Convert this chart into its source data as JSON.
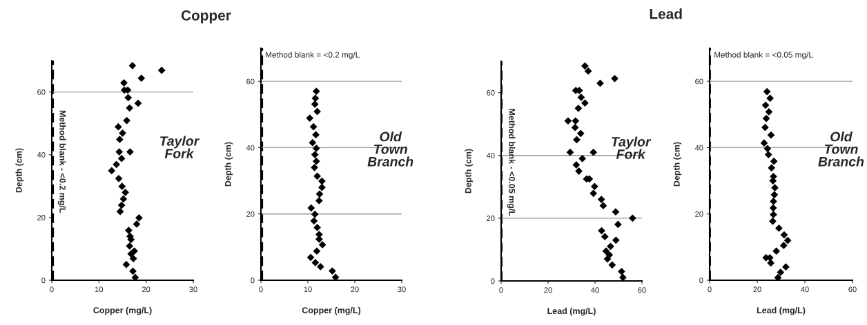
{
  "chart_data": [
    {
      "type": "scatter",
      "title": "Copper",
      "xlabel": "Copper (mg/L)",
      "ylabel": "Depth (cm)",
      "annotations": [
        "Taylor Fork"
      ],
      "marker": "diamond",
      "grid": false,
      "xlim": [
        0,
        30
      ],
      "xticks": [
        0,
        10,
        20,
        30
      ],
      "ylim": [
        0,
        70
      ],
      "yticks": [
        0,
        20,
        40,
        60
      ],
      "ref_lines": [
        {
          "axis": "x",
          "value": 0.2,
          "label": "Method blank - <0.2 mg/L",
          "line_style": "dashed",
          "color": "#000000"
        },
        {
          "axis": "y",
          "value": 60,
          "color": "#999999"
        }
      ],
      "series": [
        {
          "color": "#000000",
          "x": [
            17.1,
            23.3,
            19.0,
            15.3,
            15.4,
            16.1,
            16.2,
            18.3,
            16.5,
            15.9,
            14.1,
            15.0,
            14.4,
            14.3,
            16.6,
            14.8,
            13.7,
            12.7,
            14.2,
            14.9,
            15.6,
            15.2,
            14.8,
            14.5,
            18.5,
            18.0,
            16.3,
            16.6,
            16.8,
            16.5,
            17.5,
            16.8,
            17.3,
            15.8,
            17.2,
            17.7
          ],
          "values": [
            68.4,
            66.9,
            64.4,
            62.9,
            60.6,
            60.6,
            58.2,
            56.4,
            54.9,
            50.9,
            48.9,
            46.9,
            44.9,
            40.9,
            40.9,
            38.8,
            36.9,
            34.9,
            32.4,
            29.9,
            28.0,
            25.9,
            23.9,
            21.9,
            19.9,
            17.9,
            15.9,
            14.0,
            13.0,
            10.9,
            9.3,
            8.4,
            6.9,
            5.0,
            2.9,
            0.9
          ]
        }
      ]
    },
    {
      "type": "scatter",
      "xlabel": "Copper (mg/L)",
      "ylabel": "Depth (cm)",
      "annotations": [
        "Old Town Branch"
      ],
      "marker": "diamond",
      "grid": false,
      "xlim": [
        0,
        30
      ],
      "xticks": [
        0,
        10,
        20,
        30
      ],
      "ylim": [
        0,
        70
      ],
      "yticks": [
        0,
        20,
        40,
        60
      ],
      "ref_lines": [
        {
          "axis": "x",
          "value": 0.2,
          "label": "Method blank = <0.2 mg/L",
          "line_style": "dashed",
          "color": "#000000"
        },
        {
          "axis": "y",
          "value": 20,
          "color": "#999999"
        },
        {
          "axis": "y",
          "value": 40,
          "color": "#999999"
        },
        {
          "axis": "y",
          "value": 60,
          "color": "#999999"
        }
      ],
      "series": [
        {
          "color": "#000000",
          "x": [
            11.8,
            11.6,
            11.5,
            12.0,
            10.4,
            11.2,
            11.7,
            11.0,
            11.8,
            11.5,
            11.8,
            11.4,
            12.0,
            13.0,
            13.0,
            12.5,
            12.4,
            10.7,
            11.5,
            11.3,
            12.0,
            12.4,
            12.4,
            13.1,
            11.9,
            10.6,
            11.6,
            12.7,
            15.2,
            15.9
          ],
          "values": [
            57.0,
            54.9,
            53.1,
            50.9,
            48.9,
            46.3,
            43.9,
            41.5,
            39.8,
            37.9,
            35.9,
            34.0,
            31.4,
            29.9,
            28.0,
            26.0,
            24.0,
            21.8,
            19.9,
            17.9,
            15.9,
            13.8,
            12.4,
            10.7,
            8.8,
            6.9,
            5.3,
            4.1,
            2.8,
            0.9
          ]
        }
      ]
    },
    {
      "type": "scatter",
      "title": "Lead",
      "xlabel": "Lead (mg/L)",
      "ylabel": "Depth (cm)",
      "annotations": [
        "Taylor Fork"
      ],
      "marker": "diamond",
      "grid": false,
      "xlim": [
        0,
        60
      ],
      "xticks": [
        0,
        20,
        40,
        60
      ],
      "ylim": [
        0,
        70
      ],
      "yticks": [
        0,
        20,
        40,
        60
      ],
      "ref_lines": [
        {
          "axis": "x",
          "value": 0.05,
          "label": "Method blank - <0.05 mg/L",
          "line_style": "dashed",
          "color": "#000000"
        },
        {
          "axis": "y",
          "value": 20,
          "color": "#999999"
        },
        {
          "axis": "y",
          "value": 40,
          "color": "#999999"
        }
      ],
      "series": [
        {
          "color": "#000000",
          "x": [
            35.7,
            37.1,
            48.4,
            42.2,
            31.8,
            33.3,
            34.1,
            35.7,
            32.9,
            28.5,
            31.7,
            31.5,
            33.9,
            32.2,
            29.4,
            39.3,
            34.6,
            32.0,
            33.1,
            36.4,
            37.6,
            39.8,
            39.3,
            42.7,
            43.5,
            48.8,
            56.0,
            49.8,
            42.8,
            44.2,
            48.9,
            46.6,
            44.7,
            46.1,
            45.3,
            47.3,
            51.3,
            51.9
          ],
          "values": [
            68.5,
            66.9,
            64.5,
            63.0,
            60.7,
            60.7,
            58.5,
            56.7,
            55.0,
            51.0,
            51.0,
            48.9,
            47.0,
            45.0,
            41.0,
            41.0,
            39.0,
            37.0,
            35.0,
            32.5,
            32.5,
            30.1,
            27.9,
            26.0,
            24.0,
            22.0,
            20.0,
            18.0,
            16.0,
            14.1,
            13.0,
            11.0,
            9.5,
            8.3,
            7.0,
            5.1,
            3.0,
            1.1
          ]
        }
      ]
    },
    {
      "type": "scatter",
      "xlabel": "Lead (mg/L)",
      "ylabel": "Depth (cm)",
      "annotations": [
        "Old Town Branch"
      ],
      "marker": "diamond",
      "grid": false,
      "xlim": [
        0,
        60
      ],
      "xticks": [
        0,
        20,
        40,
        60
      ],
      "ylim": [
        0,
        70
      ],
      "yticks": [
        0,
        20,
        40,
        60
      ],
      "ref_lines": [
        {
          "axis": "x",
          "value": 0.05,
          "label": "Method blank = <0.05 mg/L",
          "line_style": "dashed",
          "color": "#000000"
        },
        {
          "axis": "y",
          "value": 40,
          "color": "#999999"
        },
        {
          "axis": "y",
          "value": 60,
          "color": "#999999"
        }
      ],
      "series": [
        {
          "color": "#000000",
          "x": [
            24.1,
            25.4,
            23.5,
            24.9,
            23.8,
            23.3,
            25.8,
            22.9,
            24.3,
            24.7,
            27.0,
            26.0,
            26.8,
            26.6,
            27.4,
            27.2,
            26.8,
            26.7,
            26.8,
            26.5,
            29.1,
            31.3,
            32.8,
            31.1,
            28.0,
            23.7,
            25.3,
            25.7,
            32.0,
            29.8,
            28.7
          ],
          "values": [
            56.9,
            54.9,
            52.8,
            50.8,
            48.8,
            46.1,
            43.8,
            41.4,
            39.7,
            37.9,
            35.9,
            33.9,
            31.3,
            30.0,
            27.9,
            25.8,
            23.8,
            21.8,
            19.8,
            17.8,
            15.7,
            13.7,
            12.0,
            10.5,
            8.8,
            6.8,
            6.8,
            5.2,
            4.0,
            2.4,
            0.8
          ]
        }
      ]
    }
  ]
}
